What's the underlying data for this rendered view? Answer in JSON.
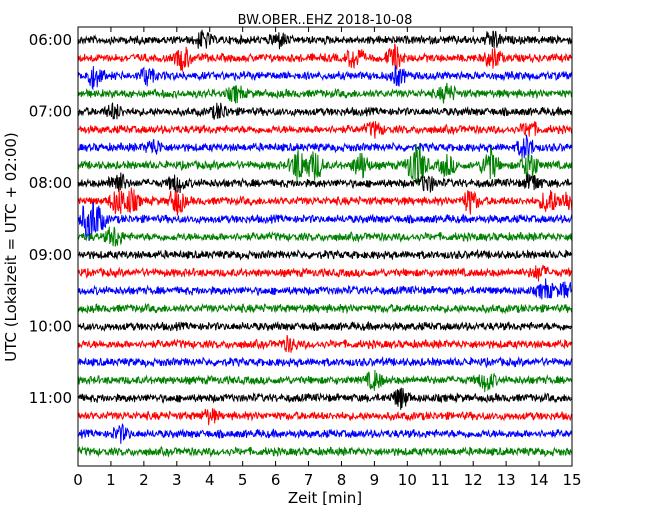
{
  "chart_data": {
    "type": "line",
    "title": "BW.OBER..EHZ 2018-10-08",
    "xlabel": "Zeit  [min]",
    "ylabel": "UTC (Lokalzeit = UTC + 02:00)",
    "xlim": [
      0,
      15
    ],
    "x_ticks": [
      "0",
      "1",
      "2",
      "3",
      "4",
      "5",
      "6",
      "7",
      "8",
      "9",
      "10",
      "11",
      "12",
      "13",
      "14",
      "15"
    ],
    "y_tick_labels": [
      "06:00",
      "07:00",
      "08:00",
      "09:00",
      "10:00",
      "11:00"
    ],
    "row_minutes": 15,
    "trace_colors": [
      "#000000",
      "#ff0000",
      "#0000ff",
      "#008000"
    ],
    "traces": [
      {
        "start": "06:00",
        "color": "#000000",
        "events": [
          {
            "t": 3.8,
            "a": 1.2
          },
          {
            "t": 6.1,
            "a": 1.0
          },
          {
            "t": 12.6,
            "a": 1.2
          }
        ]
      },
      {
        "start": "06:15",
        "color": "#ff0000",
        "events": [
          {
            "t": 3.2,
            "a": 1.6
          },
          {
            "t": 8.4,
            "a": 1.5
          },
          {
            "t": 9.6,
            "a": 1.6
          },
          {
            "t": 12.6,
            "a": 1.4
          }
        ]
      },
      {
        "start": "06:30",
        "color": "#0000ff",
        "events": [
          {
            "t": 0.5,
            "a": 1.6
          },
          {
            "t": 2.1,
            "a": 1.2
          },
          {
            "t": 9.7,
            "a": 1.2
          }
        ]
      },
      {
        "start": "06:45",
        "color": "#008000",
        "events": [
          {
            "t": 4.8,
            "a": 1.0
          },
          {
            "t": 11.2,
            "a": 1.2
          }
        ]
      },
      {
        "start": "07:00",
        "color": "#000000",
        "events": [
          {
            "t": 1.1,
            "a": 1.0
          },
          {
            "t": 4.3,
            "a": 1.0
          }
        ]
      },
      {
        "start": "07:15",
        "color": "#ff0000",
        "events": [
          {
            "t": 9.0,
            "a": 0.9
          },
          {
            "t": 13.7,
            "a": 1.0
          }
        ]
      },
      {
        "start": "07:30",
        "color": "#0000ff",
        "events": [
          {
            "t": 2.3,
            "a": 1.0
          },
          {
            "t": 13.6,
            "a": 1.6
          }
        ]
      },
      {
        "start": "07:45",
        "color": "#008000",
        "events": [
          {
            "t": 6.7,
            "a": 2.4
          },
          {
            "t": 7.2,
            "a": 2.0
          },
          {
            "t": 8.6,
            "a": 1.8
          },
          {
            "t": 10.2,
            "a": 2.2
          },
          {
            "t": 10.4,
            "a": 1.6
          },
          {
            "t": 11.2,
            "a": 1.4
          },
          {
            "t": 12.5,
            "a": 2.4
          },
          {
            "t": 13.7,
            "a": 2.2
          }
        ]
      },
      {
        "start": "08:00",
        "color": "#000000",
        "events": [
          {
            "t": 1.2,
            "a": 1.6
          },
          {
            "t": 3.0,
            "a": 1.2
          },
          {
            "t": 10.6,
            "a": 1.2
          },
          {
            "t": 13.8,
            "a": 1.2
          }
        ]
      },
      {
        "start": "08:15",
        "color": "#ff0000",
        "events": [
          {
            "t": 1.2,
            "a": 1.8
          },
          {
            "t": 1.6,
            "a": 1.6
          },
          {
            "t": 3.0,
            "a": 1.8
          },
          {
            "t": 11.9,
            "a": 1.6
          },
          {
            "t": 14.3,
            "a": 1.8
          },
          {
            "t": 14.9,
            "a": 1.6
          }
        ]
      },
      {
        "start": "08:30",
        "color": "#0000ff",
        "events": [
          {
            "t": 0.3,
            "a": 2.6
          },
          {
            "t": 0.6,
            "a": 1.8
          }
        ]
      },
      {
        "start": "08:45",
        "color": "#008000",
        "events": [
          {
            "t": 1.1,
            "a": 1.4
          }
        ]
      },
      {
        "start": "09:00",
        "color": "#000000",
        "events": []
      },
      {
        "start": "09:15",
        "color": "#ff0000",
        "events": [
          {
            "t": 14.0,
            "a": 1.0
          }
        ]
      },
      {
        "start": "09:30",
        "color": "#0000ff",
        "events": [
          {
            "t": 14.2,
            "a": 1.2
          },
          {
            "t": 14.8,
            "a": 1.0
          }
        ]
      },
      {
        "start": "09:45",
        "color": "#008000",
        "events": []
      },
      {
        "start": "10:00",
        "color": "#000000",
        "events": []
      },
      {
        "start": "10:15",
        "color": "#ff0000",
        "events": [
          {
            "t": 6.4,
            "a": 0.9
          }
        ]
      },
      {
        "start": "10:30",
        "color": "#0000ff",
        "events": []
      },
      {
        "start": "10:45",
        "color": "#008000",
        "events": [
          {
            "t": 9.0,
            "a": 1.2
          },
          {
            "t": 12.4,
            "a": 1.4
          }
        ]
      },
      {
        "start": "11:00",
        "color": "#000000",
        "events": [
          {
            "t": 9.8,
            "a": 1.4
          }
        ]
      },
      {
        "start": "11:15",
        "color": "#ff0000",
        "events": [
          {
            "t": 4.0,
            "a": 0.9
          }
        ]
      },
      {
        "start": "11:30",
        "color": "#0000ff",
        "events": [
          {
            "t": 1.3,
            "a": 1.0
          }
        ]
      },
      {
        "start": "11:45",
        "color": "#008000",
        "events": []
      }
    ]
  }
}
